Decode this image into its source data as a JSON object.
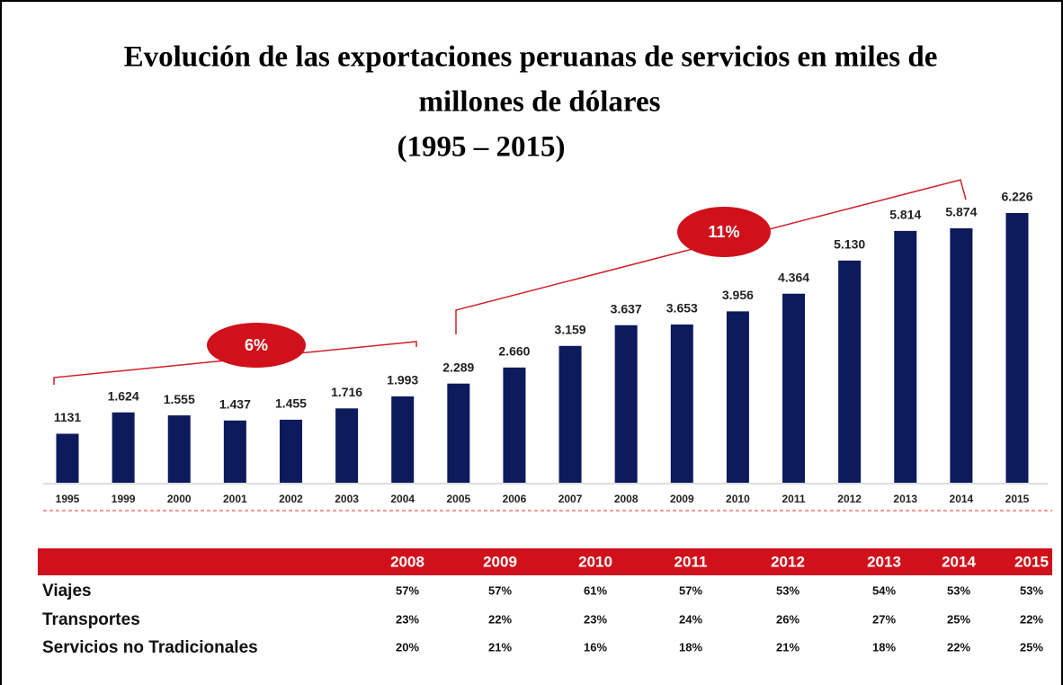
{
  "chart_data": {
    "type": "bar",
    "title": [
      "Evolución de las exportaciones peruanas de servicios en miles de",
      "millones de dólares"
    ],
    "subtitle": "(1995 – 2015)",
    "categories": [
      "1995",
      "1999",
      "2000",
      "2001",
      "2002",
      "2003",
      "2004",
      "2005",
      "2006",
      "2007",
      "2008",
      "2009",
      "2010",
      "2011",
      "2012",
      "2013",
      "2014",
      "2015"
    ],
    "values": [
      1131,
      1624,
      1555,
      1437,
      1455,
      1716,
      1993,
      2289,
      2660,
      3159,
      3637,
      3653,
      3956,
      4364,
      5130,
      5814,
      5874,
      6226
    ],
    "value_labels": [
      "1131",
      "1.624",
      "1.555",
      "1.437",
      "1.455",
      "1.716",
      "1.993",
      "2.289",
      "2.660",
      "3.159",
      "3.637",
      "3.653",
      "3.956",
      "4.364",
      "5.130",
      "5.814",
      "5.874",
      "6.226"
    ],
    "color": "#0d1a5c",
    "annotations": [
      "6%",
      "11%"
    ]
  },
  "table": {
    "header": [
      "2008",
      "2009",
      "2010",
      "2011",
      "2012",
      "2013",
      "2014",
      "2015"
    ],
    "rows": [
      [
        "Viajes",
        "57%",
        "57%",
        "61%",
        "57%",
        "53%",
        "54%",
        "53%",
        "53%"
      ],
      [
        "Transportes",
        "23%",
        "22%",
        "23%",
        "24%",
        "26%",
        "27%",
        "25%",
        "22%"
      ],
      [
        "Servicios no Tradicionales",
        "20%",
        "21%",
        "16%",
        "18%",
        "21%",
        "18%",
        "22%",
        "25%"
      ]
    ]
  }
}
